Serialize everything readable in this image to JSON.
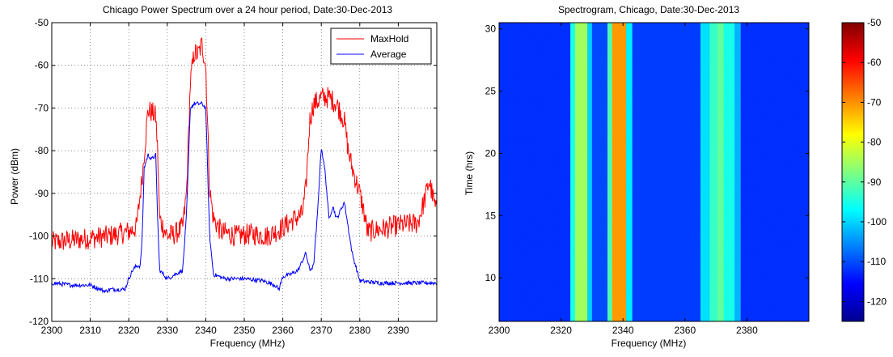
{
  "chart_data": [
    {
      "type": "line",
      "title": "Chicago Power Spectrum over a 24 hour period, Date:30-Dec-2013",
      "xlabel": "Frequency (MHz)",
      "ylabel": "Power (dBm)",
      "xlim": [
        2300,
        2400
      ],
      "ylim": [
        -120,
        -50
      ],
      "xticks": [
        2300,
        2310,
        2320,
        2330,
        2340,
        2350,
        2360,
        2370,
        2380,
        2390
      ],
      "yticks": [
        -120,
        -110,
        -100,
        -90,
        -80,
        -70,
        -60,
        -50
      ],
      "grid": true,
      "legend_position": "top-right",
      "series": [
        {
          "name": "MaxHold",
          "color": "#ff0000",
          "x": [
            2300,
            2305,
            2310,
            2315,
            2320,
            2322,
            2323.5,
            2325,
            2326,
            2327,
            2327.5,
            2328,
            2330,
            2332,
            2334,
            2335,
            2336,
            2337,
            2338,
            2339,
            2340,
            2341,
            2342,
            2344,
            2348,
            2352,
            2356,
            2360,
            2363,
            2365,
            2366,
            2367,
            2368,
            2369,
            2370,
            2372,
            2374,
            2376,
            2377,
            2378,
            2380,
            2381,
            2382,
            2385,
            2390,
            2395,
            2396,
            2397,
            2398,
            2399,
            2400
          ],
          "y": [
            -101.5,
            -101,
            -100.5,
            -100,
            -99,
            -98,
            -86,
            -70.5,
            -71,
            -72,
            -80,
            -96,
            -100,
            -99.5,
            -98,
            -90,
            -64,
            -57,
            -57.5,
            -55,
            -60,
            -89,
            -96,
            -99,
            -100,
            -99.5,
            -100,
            -98,
            -96,
            -95,
            -89,
            -73,
            -69,
            -68.5,
            -67.5,
            -67.5,
            -69,
            -73,
            -80,
            -84,
            -90,
            -94,
            -99,
            -98.5,
            -97.5,
            -97,
            -94,
            -91,
            -87,
            -91,
            -95
          ]
        },
        {
          "name": "Average",
          "color": "#0000ff",
          "x": [
            2300,
            2305,
            2310,
            2314,
            2315,
            2319,
            2320,
            2321,
            2322,
            2323,
            2323.5,
            2324,
            2325,
            2326,
            2327,
            2327.5,
            2328,
            2330,
            2332,
            2334,
            2335,
            2336,
            2337,
            2338,
            2339,
            2340,
            2341,
            2342,
            2345,
            2350,
            2355,
            2358,
            2359,
            2360,
            2362,
            2364,
            2365,
            2366,
            2367,
            2368,
            2369,
            2370,
            2371,
            2372,
            2373,
            2374,
            2375,
            2376,
            2377,
            2378,
            2380,
            2385,
            2390,
            2395,
            2400
          ],
          "y": [
            -111,
            -111.5,
            -111.5,
            -113,
            -112.5,
            -112.5,
            -110,
            -108,
            -107,
            -107,
            -100,
            -84,
            -81,
            -82,
            -81,
            -96,
            -108,
            -110,
            -109,
            -108,
            -95,
            -70,
            -69,
            -69,
            -69,
            -70,
            -100,
            -109,
            -110,
            -110,
            -110.5,
            -111.5,
            -112.5,
            -109.5,
            -109,
            -108,
            -106,
            -104,
            -108,
            -107,
            -95,
            -79,
            -85,
            -96,
            -93,
            -96,
            -94,
            -92,
            -98,
            -104,
            -110.5,
            -111,
            -111,
            -111,
            -111
          ]
        }
      ]
    },
    {
      "type": "heatmap",
      "title": "Spectrogram, Chicago, Date:30-Dec-2013",
      "xlabel": "Frequency (MHz)",
      "ylabel": "Time (hrs)",
      "xlim": [
        2300,
        2400
      ],
      "ylim": [
        6.5,
        30.5
      ],
      "xticks": [
        2300,
        2320,
        2340,
        2360,
        2380
      ],
      "yticks": [
        10,
        15,
        20,
        25,
        30
      ],
      "colorbar": {
        "range": [
          -125,
          -50
        ],
        "ticks": [
          -50,
          -60,
          -70,
          -80,
          -90,
          -100,
          -110,
          -120
        ],
        "colormap": "jet"
      },
      "bands": [
        {
          "from": 2300,
          "to": 2323,
          "level": -112
        },
        {
          "from": 2323,
          "to": 2324.5,
          "level": -95
        },
        {
          "from": 2324.5,
          "to": 2328.5,
          "level": -84
        },
        {
          "from": 2328.5,
          "to": 2330,
          "level": -100
        },
        {
          "from": 2330,
          "to": 2335,
          "level": -110
        },
        {
          "from": 2335,
          "to": 2336.5,
          "level": -90
        },
        {
          "from": 2336.5,
          "to": 2341,
          "level": -71
        },
        {
          "from": 2341,
          "to": 2343,
          "level": -98
        },
        {
          "from": 2343,
          "to": 2365,
          "level": -111
        },
        {
          "from": 2365,
          "to": 2368,
          "level": -99
        },
        {
          "from": 2368,
          "to": 2370.5,
          "level": -92
        },
        {
          "from": 2370.5,
          "to": 2372.5,
          "level": -88
        },
        {
          "from": 2372.5,
          "to": 2376,
          "level": -95
        },
        {
          "from": 2376,
          "to": 2378,
          "level": -102
        },
        {
          "from": 2378,
          "to": 2400,
          "level": -112
        }
      ]
    }
  ]
}
